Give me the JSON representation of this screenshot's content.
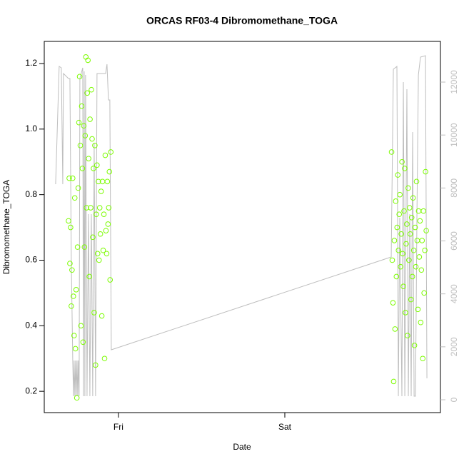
{
  "chart_data": {
    "type": "scatter",
    "title": "ORCAS RF03-4 Dibromomethane_TOGA",
    "xlabel": "Date",
    "ylabel": "Dibromomethane_TOGA",
    "xlim": [
      13.3,
      70.45
    ],
    "xticks": [
      {
        "value": 24,
        "label": "Fri"
      },
      {
        "value": 48,
        "label": "Sat"
      }
    ],
    "ylim": [
      0.135,
      1.2675
    ],
    "yticks": [
      0.2,
      0.4,
      0.6,
      0.8,
      {
        "value": 1,
        "label": "1.0"
      },
      1.2
    ],
    "y2lim": [
      -485,
      13537
    ],
    "y2ticks": [
      0,
      2000,
      4000,
      6000,
      8000,
      10000,
      12000
    ],
    "series": [
      {
        "type": "scatter",
        "color": "#7cfc00",
        "x": [
          16.8,
          16.9,
          17.0,
          17.1,
          17.2,
          17.3,
          17.4,
          17.5,
          17.6,
          17.7,
          17.8,
          17.9,
          18.0,
          18.1,
          18.2,
          18.3,
          18.4,
          18.5,
          18.6,
          18.7,
          18.8,
          18.9,
          19.0,
          19.1,
          19.2,
          19.3,
          19.4,
          19.5,
          19.6,
          19.7,
          19.8,
          19.9,
          20.0,
          20.1,
          20.2,
          20.3,
          20.4,
          20.5,
          20.6,
          20.7,
          20.8,
          20.9,
          21.0,
          21.1,
          21.2,
          21.3,
          21.4,
          21.5,
          21.6,
          21.7,
          21.8,
          21.9,
          22.0,
          22.1,
          22.2,
          22.3,
          22.4,
          22.5,
          22.6,
          22.7,
          22.8,
          22.9,
          63.4,
          63.5,
          63.6,
          63.7,
          63.8,
          63.9,
          64.0,
          64.1,
          64.2,
          64.3,
          64.4,
          64.5,
          64.6,
          64.7,
          64.8,
          64.9,
          65.0,
          65.1,
          65.2,
          65.3,
          65.4,
          65.5,
          65.6,
          65.7,
          65.8,
          65.9,
          66.0,
          66.1,
          66.2,
          66.3,
          66.4,
          66.5,
          66.6,
          66.7,
          66.8,
          66.9,
          67.0,
          67.1,
          67.2,
          67.3,
          67.4,
          67.5,
          67.6,
          67.7,
          67.8,
          67.9,
          68.0,
          68.1,
          68.2,
          68.3,
          68.4
        ],
        "values": [
          0.72,
          0.85,
          0.59,
          0.7,
          0.46,
          0.57,
          0.85,
          0.49,
          0.37,
          0.79,
          0.33,
          0.51,
          0.18,
          0.64,
          0.82,
          1.02,
          1.16,
          0.95,
          0.4,
          1.07,
          0.88,
          0.35,
          1.01,
          0.64,
          0.98,
          1.22,
          0.76,
          1.11,
          1.21,
          0.91,
          0.55,
          1.03,
          0.76,
          1.12,
          0.97,
          0.67,
          0.88,
          0.44,
          0.95,
          0.28,
          0.74,
          0.89,
          0.62,
          0.84,
          0.6,
          0.76,
          0.68,
          0.81,
          0.43,
          0.84,
          0.63,
          0.74,
          0.3,
          0.92,
          0.69,
          0.62,
          0.84,
          0.71,
          0.76,
          0.87,
          0.54,
          0.93,
          0.93,
          0.6,
          0.47,
          0.23,
          0.66,
          0.39,
          0.78,
          0.55,
          0.7,
          0.86,
          0.63,
          0.74,
          0.8,
          0.58,
          0.68,
          0.9,
          0.62,
          0.52,
          0.75,
          0.88,
          0.44,
          0.65,
          0.71,
          0.37,
          0.82,
          0.6,
          0.76,
          0.68,
          0.48,
          0.73,
          0.55,
          0.79,
          0.63,
          0.34,
          0.7,
          0.58,
          0.84,
          0.66,
          0.45,
          0.75,
          0.61,
          0.72,
          0.41,
          0.57,
          0.66,
          0.3,
          0.75,
          0.5,
          0.63,
          0.87,
          0.69
        ]
      },
      {
        "type": "line",
        "color": "#bebebe",
        "axis": "y2",
        "x": [
          14.94,
          15.45,
          15.76,
          15.97,
          16.07,
          16.79,
          17.0,
          17.2,
          17.41,
          17.51,
          17.61,
          17.72,
          17.82,
          17.92,
          18.03,
          18.13,
          18.23,
          18.33,
          18.44,
          18.85,
          18.95,
          19.06,
          19.16,
          19.26,
          19.47,
          19.67,
          19.88,
          20.09,
          20.29,
          20.5,
          20.7,
          20.91,
          22.15,
          22.35,
          22.56,
          22.76,
          22.97,
          63.35,
          63.66,
          64.17,
          64.38,
          64.58,
          64.89,
          65.1,
          65.31,
          65.61,
          65.82,
          66.03,
          66.23,
          66.44,
          66.65,
          66.85,
          67.06,
          67.27,
          67.57,
          68.29,
          68.5
        ],
        "values": [
          8144,
          12593,
          12539,
          8144,
          12324,
          12135,
          12135,
          5258,
          1483,
          135,
          1483,
          135,
          1483,
          135,
          1483,
          135,
          1483,
          135,
          12135,
          12539,
          135,
          12404,
          135,
          12270,
          135,
          7011,
          135,
          7011,
          135,
          9708,
          135,
          12324,
          12324,
          12674,
          11326,
          11326,
          1888,
          5393,
          12485,
          12593,
          135,
          6876,
          135,
          12000,
          135,
          11730,
          135,
          7011,
          135,
          10112,
          135,
          135,
          7011,
          12270,
          12943,
          12997,
          809
        ]
      }
    ]
  }
}
